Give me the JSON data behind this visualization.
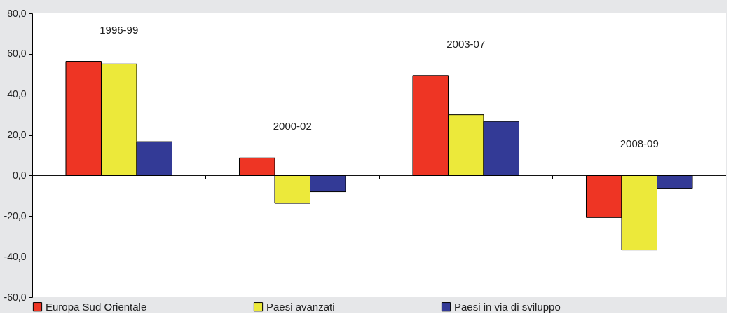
{
  "chart_data": {
    "type": "bar",
    "categories": [
      "1996-99",
      "2000-02",
      "2003-07",
      "2008-09"
    ],
    "series": [
      {
        "name": "Europa Sud Orientale",
        "color": "#ee3524",
        "values": [
          56.3,
          8.7,
          49.3,
          -20.7
        ]
      },
      {
        "name": "Paesi avanzati",
        "color": "#ece93a",
        "values": [
          55.0,
          -13.7,
          30.0,
          -36.7
        ]
      },
      {
        "name": "Paesi in via di sviluppo",
        "color": "#333a96",
        "values": [
          16.7,
          -8.0,
          26.7,
          -6.3
        ]
      }
    ],
    "ylim": [
      -60,
      80
    ],
    "yticks": [
      {
        "value": -60,
        "label": "-60,0"
      },
      {
        "value": -40,
        "label": "-40,0"
      },
      {
        "value": -20,
        "label": "-20,0"
      },
      {
        "value": 0,
        "label": "0,0"
      },
      {
        "value": 20,
        "label": "20,0"
      },
      {
        "value": 40,
        "label": "40,0"
      },
      {
        "value": 60,
        "label": "60,0"
      },
      {
        "value": 80,
        "label": "80,0"
      }
    ],
    "ref_lines": [
      {
        "axis": "y",
        "value": 0,
        "color": "#000000"
      }
    ],
    "tick_labels": "y",
    "grid": false,
    "legend": "bottom"
  }
}
